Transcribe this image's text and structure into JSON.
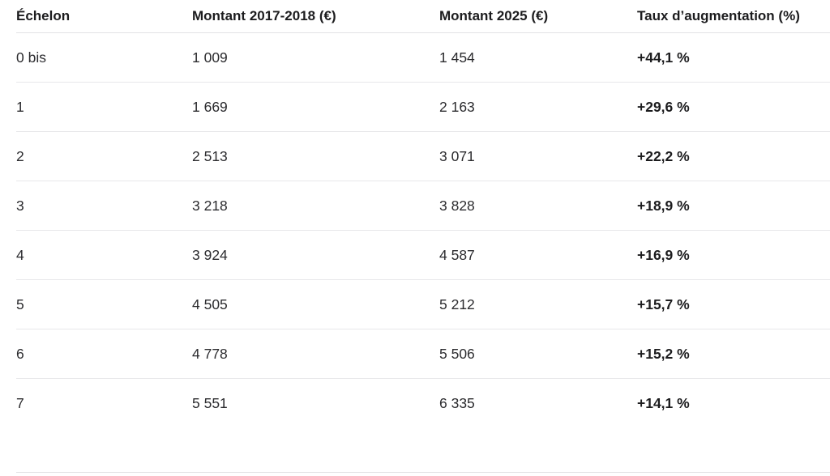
{
  "table": {
    "headers": [
      "Échelon",
      "Montant 2017-2018 (€)",
      "Montant 2025 (€)",
      "Taux d’augmentation (%)"
    ],
    "rows": [
      [
        "0 bis",
        "1 009",
        "1 454",
        "+44,1 %"
      ],
      [
        "1",
        "1 669",
        "2 163",
        "+29,6 %"
      ],
      [
        "2",
        "2 513",
        "3 071",
        "+22,2 %"
      ],
      [
        "3",
        "3 218",
        "3 828",
        "+18,9 %"
      ],
      [
        "4",
        "3 924",
        "4 587",
        "+16,9 %"
      ],
      [
        "5",
        "4 505",
        "5 212",
        "+15,7 %"
      ],
      [
        "6",
        "4 778",
        "5 506",
        "+15,2 %"
      ],
      [
        "7",
        "5 551",
        "6 335",
        "+14,1 %"
      ]
    ]
  }
}
